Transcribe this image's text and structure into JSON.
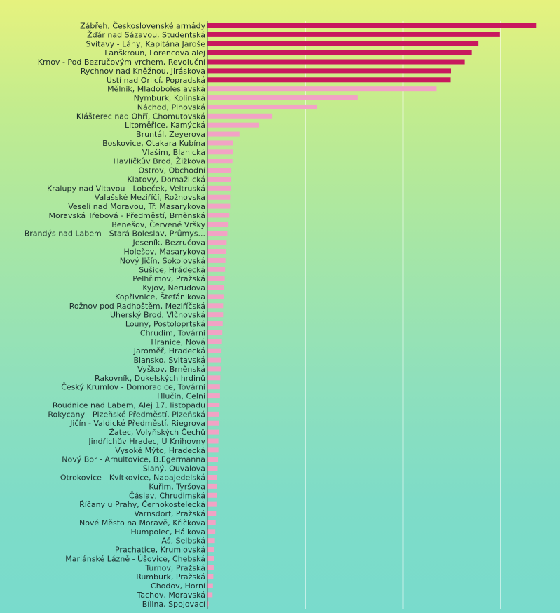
{
  "chart_data": {
    "type": "bar",
    "orientation": "horizontal",
    "title": "",
    "xlabel": "",
    "ylabel": "",
    "xlim": [
      0,
      100
    ],
    "grid": true,
    "legend": "none",
    "highlight_color": "#c8185e",
    "normal_color": "#f2a3c5",
    "highlight_count": 7,
    "categories": [
      "Zábřeh, Československé armády",
      "Žďár nad Sázavou, Studentská",
      "Svitavy - Lány, Kapitána Jaroše",
      "Lanškroun, Lorencova alej",
      "Krnov - Pod Bezručovým vrchem, Revoluční",
      "Rychnov nad Kněžnou, Jiráskova",
      "Ústí nad Orlicí, Popradská",
      "Mělník, Mladoboleslavská",
      "Nymburk, Kolínská",
      "Náchod, Plhovská",
      "Klášterec nad Ohří, Chomutovská",
      "Litoměřice, Kamýcká",
      "Bruntál, Zeyerova",
      "Boskovice, Otakara Kubína",
      "Vlašim, Blanická",
      "Havlíčkův Brod, Žižkova",
      "Ostrov, Obchodní",
      "Klatovy, Domažlická",
      "Kralupy nad Vltavou - Lobeček, Veltruská",
      "Valašské Meziříčí, Rožnovská",
      "Veselí nad Moravou, Tř. Masarykova",
      "Moravská Třebová - Předměstí, Brněnská",
      "Benešov, Červené Vršky",
      "Brandýs nad Labem - Stará Boleslav, Průmys...",
      "Jeseník, Bezručova",
      "Holešov, Masarykova",
      "Nový Jičín, Sokolovská",
      "Sušice, Hrádecká",
      "Pelhřimov, Pražská",
      "Kyjov, Nerudova",
      "Kopřivnice, Štefánikova",
      "Rožnov pod Radhoštěm, Meziříčská",
      "Uherský Brod, Vlčnovská",
      "Louny, Postoloprtská",
      "Chrudim, Tovární",
      "Hranice, Nová",
      "Jaroměř, Hradecká",
      "Blansko, Svitavská",
      "Vyškov, Brněnská",
      "Rakovník, Dukelských hrdinů",
      "Český Krumlov - Domoradice, Tovární",
      "Hlučín, Celní",
      "Roudnice nad Labem, Alej 17. listopadu",
      "Rokycany - Plzeňské Předměstí, Plzeňská",
      "Jičín - Valdické Předměstí, Riegrova",
      "Žatec, Volyňských Čechů",
      "Jindřichův Hradec, U Knihovny",
      "Vysoké Mýto, Hradecká",
      "Nový Bor - Arnultovice, B.Egermanna",
      "Slaný, Ouvalova",
      "Otrokovice - Kvítkovice, Napajedelská",
      "Kuřim, Tyršova",
      "Čáslav, Chrudimská",
      "Říčany u Prahy, Černokostelecká",
      "Varnsdorf, Pražská",
      "Nové Město na Moravě, Křičkova",
      "Humpolec, Hálkova",
      "Aš, Selbská",
      "Prachatice, Krumlovská",
      "Mariánské Lázně - Úšovice, Chebská",
      "Turnov, Pražská",
      "Rumburk, Pražská",
      "Chodov, Horní",
      "Tachov, Moravská",
      "Bílina, Spojovací"
    ],
    "values": [
      84.1,
      74.7,
      69.2,
      67.5,
      65.7,
      62.3,
      62.1,
      58.5,
      38.5,
      28.0,
      16.5,
      13.1,
      8.2,
      6.6,
      6.5,
      6.4,
      6.1,
      6.0,
      5.9,
      5.8,
      5.8,
      5.6,
      5.4,
      5.1,
      4.9,
      4.8,
      4.6,
      4.5,
      4.4,
      4.2,
      4.1,
      4.0,
      4.0,
      3.9,
      3.8,
      3.7,
      3.6,
      3.5,
      3.4,
      3.3,
      3.2,
      3.2,
      3.1,
      3.0,
      3.0,
      2.9,
      2.8,
      2.8,
      2.7,
      2.6,
      2.5,
      2.4,
      2.4,
      2.3,
      2.2,
      2.1,
      2.0,
      1.9,
      1.8,
      1.7,
      1.6,
      1.5,
      1.4,
      1.3,
      0.3
    ]
  }
}
